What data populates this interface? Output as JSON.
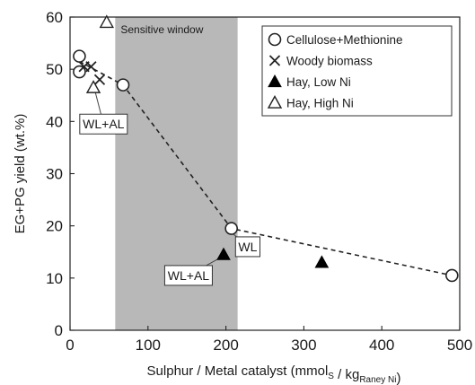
{
  "chart_data": {
    "type": "scatter",
    "xlabel": {
      "main": "Sulphur / Metal catalyst  (mmol",
      "sub1": "S",
      "mid": " / kg",
      "sub2": "Raney Ni",
      "end": ")"
    },
    "ylabel": "EG+PG yield (wt.%)",
    "xlim": [
      0,
      500
    ],
    "ylim": [
      0,
      60
    ],
    "xticks": [
      "0",
      "100",
      "200",
      "300",
      "400",
      "500"
    ],
    "yticks": [
      "0",
      "10",
      "20",
      "30",
      "40",
      "50",
      "60"
    ],
    "grid": false,
    "shaded_region": {
      "label": "Sensitive window",
      "x": [
        58,
        215
      ],
      "color": "#b8b8b8"
    },
    "legend_position": "top-right",
    "series": [
      {
        "name": "Cellulose+Methionine",
        "marker": "open-circle",
        "points": [
          [
            12,
            52.5
          ],
          [
            12,
            49.5
          ],
          [
            68,
            47.0
          ],
          [
            207,
            19.5
          ],
          [
            490,
            10.5
          ]
        ]
      },
      {
        "name": "Woody biomass",
        "marker": "x",
        "points": [
          [
            18,
            50.5
          ],
          [
            27,
            50.5
          ],
          [
            38,
            48.0
          ]
        ]
      },
      {
        "name": "Hay, Low Ni",
        "marker": "filled-triangle",
        "points": [
          [
            197,
            14.5
          ],
          [
            323,
            13.0
          ]
        ]
      },
      {
        "name": "Hay, High Ni",
        "marker": "open-triangle",
        "points": [
          [
            47,
            59.0
          ],
          [
            30,
            46.5
          ]
        ]
      }
    ],
    "trend_lines": [
      {
        "style": "dashed",
        "points": [
          [
            12,
            51.5
          ],
          [
            68,
            47.0
          ],
          [
            207,
            19.5
          ],
          [
            490,
            10.5
          ]
        ]
      }
    ],
    "annotations": [
      {
        "text": "WL+AL",
        "box_center": [
          43,
          39.5
        ],
        "pointer_to": [
          30,
          47
        ]
      },
      {
        "text": "WL",
        "box_center": [
          228,
          16.0
        ],
        "pointer_to": [
          209,
          18.5
        ]
      },
      {
        "text": "WL+AL",
        "box_center": [
          152,
          10.5
        ],
        "pointer_to": [
          194,
          14.0
        ]
      }
    ]
  }
}
